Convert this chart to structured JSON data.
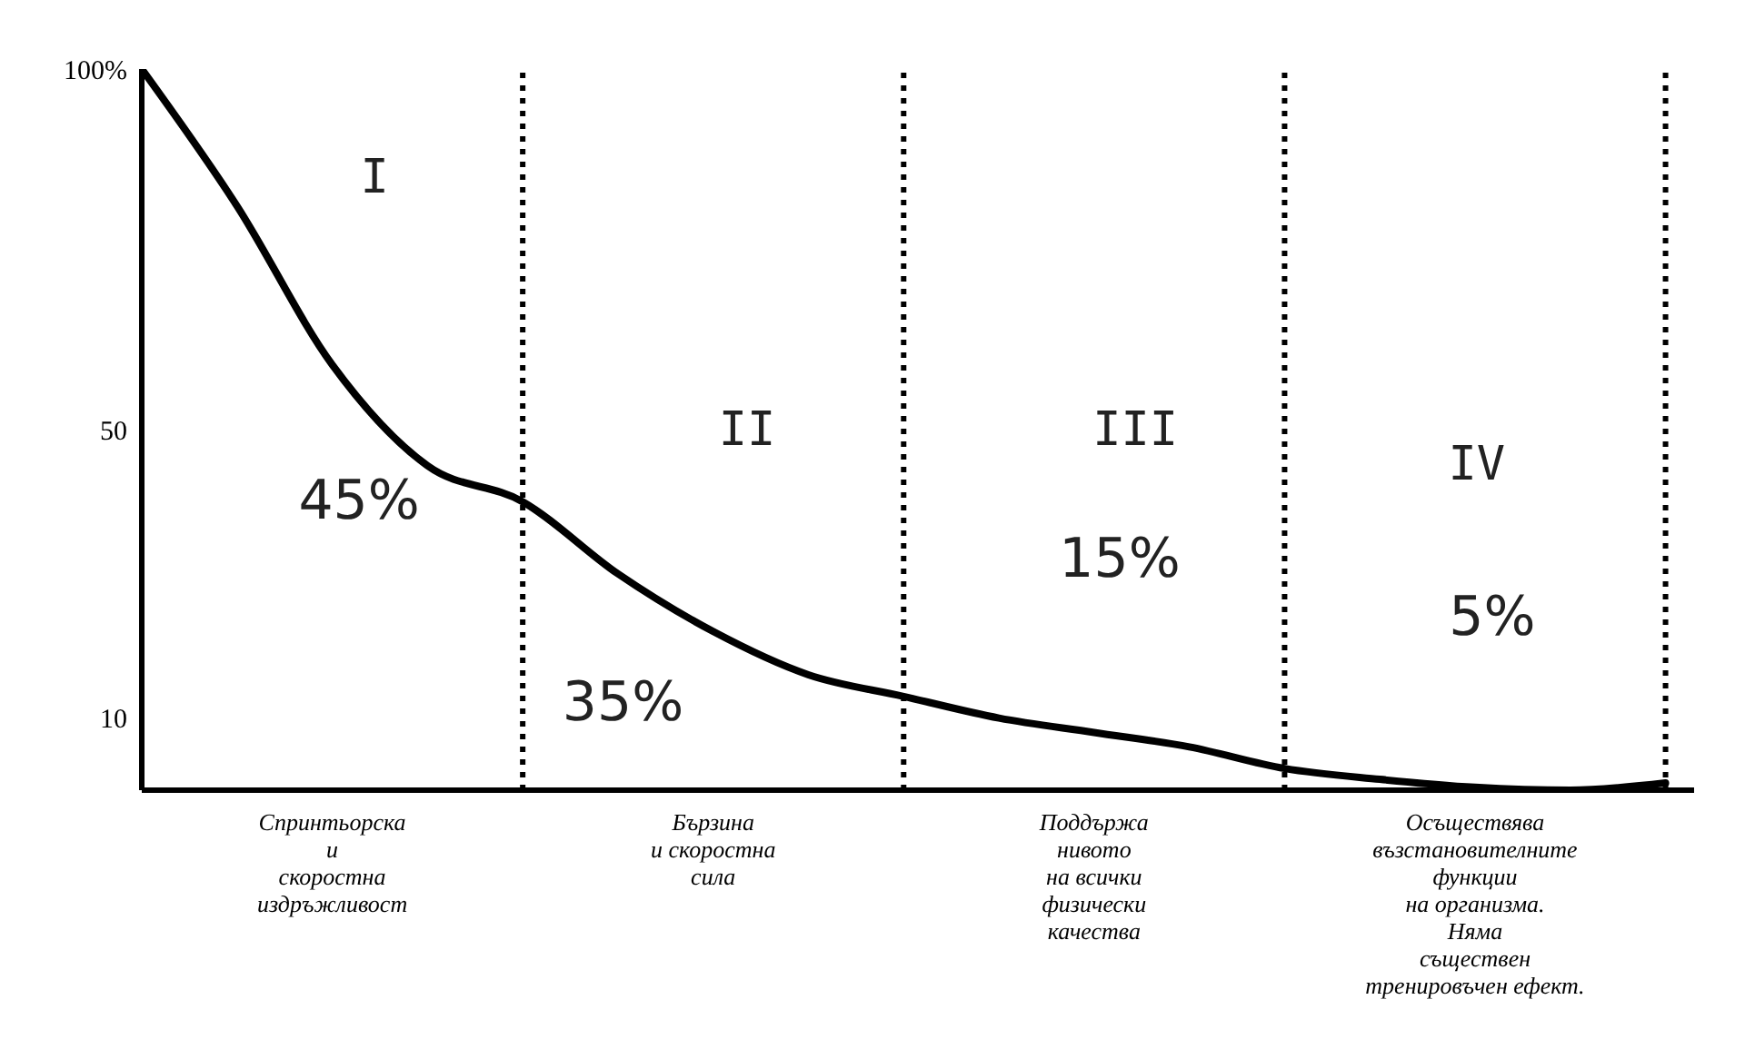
{
  "chart_data": {
    "type": "line",
    "categories": [
      null,
      null,
      "Спринтьорска\nи\nскоростна\nиздръжливост",
      null,
      null,
      null,
      "Бързина\nи скоростна\nсила",
      null,
      null,
      null,
      "Поддържа\nнивото\nна всички\nфизически\nкачества",
      null,
      null,
      null,
      "Осъществява\nвъзстановителните\nфункции\nна организма.\nНяма\nсъществен\nтренировъчен ефект.",
      null,
      null
    ],
    "series": [
      {
        "color": "#000000",
        "values": [
          100,
          81,
          59,
          45,
          40,
          30,
          22,
          16,
          13,
          10,
          8,
          6,
          3,
          1.5,
          0.4,
          0,
          1
        ]
      }
    ],
    "ylim": [
      0,
      100
    ],
    "yticks": [
      {
        "value": 10,
        "label": "10"
      },
      {
        "value": 50,
        "label": "50"
      },
      {
        "value": 100,
        "label": "100%"
      }
    ],
    "annotations": [
      "I",
      "45%",
      "II",
      "35%",
      "III",
      "15%",
      "IV",
      "5%"
    ],
    "grid": "x",
    "marker": "none",
    "line_style": "solid"
  }
}
